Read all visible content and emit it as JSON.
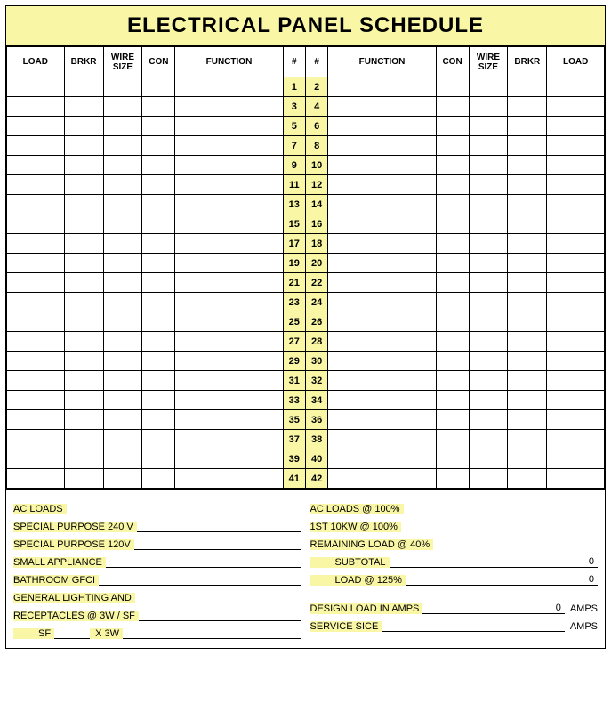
{
  "title": "ELECTRICAL PANEL SCHEDULE",
  "colors": {
    "highlight": "#f9f7a6",
    "border": "#000000",
    "background": "#ffffff"
  },
  "headers": {
    "load": "LOAD",
    "brkr": "BRKR",
    "wire": "WIRE SIZE",
    "con": "CON",
    "function": "FUNCTION",
    "num": "#"
  },
  "rows": [
    {
      "left": {
        "load": "",
        "brkr": "",
        "wire": "",
        "con": "",
        "func": ""
      },
      "lnum": "1",
      "rnum": "2",
      "right": {
        "func": "",
        "con": "",
        "wire": "",
        "brkr": "",
        "load": ""
      }
    },
    {
      "left": {
        "load": "",
        "brkr": "",
        "wire": "",
        "con": "",
        "func": ""
      },
      "lnum": "3",
      "rnum": "4",
      "right": {
        "func": "",
        "con": "",
        "wire": "",
        "brkr": "",
        "load": ""
      }
    },
    {
      "left": {
        "load": "",
        "brkr": "",
        "wire": "",
        "con": "",
        "func": ""
      },
      "lnum": "5",
      "rnum": "6",
      "right": {
        "func": "",
        "con": "",
        "wire": "",
        "brkr": "",
        "load": ""
      }
    },
    {
      "left": {
        "load": "",
        "brkr": "",
        "wire": "",
        "con": "",
        "func": ""
      },
      "lnum": "7",
      "rnum": "8",
      "right": {
        "func": "",
        "con": "",
        "wire": "",
        "brkr": "",
        "load": ""
      }
    },
    {
      "left": {
        "load": "",
        "brkr": "",
        "wire": "",
        "con": "",
        "func": ""
      },
      "lnum": "9",
      "rnum": "10",
      "right": {
        "func": "",
        "con": "",
        "wire": "",
        "brkr": "",
        "load": ""
      }
    },
    {
      "left": {
        "load": "",
        "brkr": "",
        "wire": "",
        "con": "",
        "func": ""
      },
      "lnum": "11",
      "rnum": "12",
      "right": {
        "func": "",
        "con": "",
        "wire": "",
        "brkr": "",
        "load": ""
      }
    },
    {
      "left": {
        "load": "",
        "brkr": "",
        "wire": "",
        "con": "",
        "func": ""
      },
      "lnum": "13",
      "rnum": "14",
      "right": {
        "func": "",
        "con": "",
        "wire": "",
        "brkr": "",
        "load": ""
      }
    },
    {
      "left": {
        "load": "",
        "brkr": "",
        "wire": "",
        "con": "",
        "func": ""
      },
      "lnum": "15",
      "rnum": "16",
      "right": {
        "func": "",
        "con": "",
        "wire": "",
        "brkr": "",
        "load": ""
      }
    },
    {
      "left": {
        "load": "",
        "brkr": "",
        "wire": "",
        "con": "",
        "func": ""
      },
      "lnum": "17",
      "rnum": "18",
      "right": {
        "func": "",
        "con": "",
        "wire": "",
        "brkr": "",
        "load": ""
      }
    },
    {
      "left": {
        "load": "",
        "brkr": "",
        "wire": "",
        "con": "",
        "func": ""
      },
      "lnum": "19",
      "rnum": "20",
      "right": {
        "func": "",
        "con": "",
        "wire": "",
        "brkr": "",
        "load": ""
      }
    },
    {
      "left": {
        "load": "",
        "brkr": "",
        "wire": "",
        "con": "",
        "func": ""
      },
      "lnum": "21",
      "rnum": "22",
      "right": {
        "func": "",
        "con": "",
        "wire": "",
        "brkr": "",
        "load": ""
      }
    },
    {
      "left": {
        "load": "",
        "brkr": "",
        "wire": "",
        "con": "",
        "func": ""
      },
      "lnum": "23",
      "rnum": "24",
      "right": {
        "func": "",
        "con": "",
        "wire": "",
        "brkr": "",
        "load": ""
      }
    },
    {
      "left": {
        "load": "",
        "brkr": "",
        "wire": "",
        "con": "",
        "func": ""
      },
      "lnum": "25",
      "rnum": "26",
      "right": {
        "func": "",
        "con": "",
        "wire": "",
        "brkr": "",
        "load": ""
      }
    },
    {
      "left": {
        "load": "",
        "brkr": "",
        "wire": "",
        "con": "",
        "func": ""
      },
      "lnum": "27",
      "rnum": "28",
      "right": {
        "func": "",
        "con": "",
        "wire": "",
        "brkr": "",
        "load": ""
      }
    },
    {
      "left": {
        "load": "",
        "brkr": "",
        "wire": "",
        "con": "",
        "func": ""
      },
      "lnum": "29",
      "rnum": "30",
      "right": {
        "func": "",
        "con": "",
        "wire": "",
        "brkr": "",
        "load": ""
      }
    },
    {
      "left": {
        "load": "",
        "brkr": "",
        "wire": "",
        "con": "",
        "func": ""
      },
      "lnum": "31",
      "rnum": "32",
      "right": {
        "func": "",
        "con": "",
        "wire": "",
        "brkr": "",
        "load": ""
      }
    },
    {
      "left": {
        "load": "",
        "brkr": "",
        "wire": "",
        "con": "",
        "func": ""
      },
      "lnum": "33",
      "rnum": "34",
      "right": {
        "func": "",
        "con": "",
        "wire": "",
        "brkr": "",
        "load": ""
      }
    },
    {
      "left": {
        "load": "",
        "brkr": "",
        "wire": "",
        "con": "",
        "func": ""
      },
      "lnum": "35",
      "rnum": "36",
      "right": {
        "func": "",
        "con": "",
        "wire": "",
        "brkr": "",
        "load": ""
      }
    },
    {
      "left": {
        "load": "",
        "brkr": "",
        "wire": "",
        "con": "",
        "func": ""
      },
      "lnum": "37",
      "rnum": "38",
      "right": {
        "func": "",
        "con": "",
        "wire": "",
        "brkr": "",
        "load": ""
      }
    },
    {
      "left": {
        "load": "",
        "brkr": "",
        "wire": "",
        "con": "",
        "func": ""
      },
      "lnum": "39",
      "rnum": "40",
      "right": {
        "func": "",
        "con": "",
        "wire": "",
        "brkr": "",
        "load": ""
      }
    },
    {
      "left": {
        "load": "",
        "brkr": "",
        "wire": "",
        "con": "",
        "func": ""
      },
      "lnum": "41",
      "rnum": "42",
      "right": {
        "func": "",
        "con": "",
        "wire": "",
        "brkr": "",
        "load": ""
      }
    }
  ],
  "footer_left": {
    "r0": "AC LOADS",
    "r1": "SPECIAL PURPOSE 240 V",
    "r2": "SPECIAL PURPOSE 120V",
    "r3": "SMALL APPLIANCE",
    "r4": "BATHROOM GFCI",
    "r5": "GENERAL LIGHTING AND",
    "r6": "RECEPTACLES @ 3W / SF",
    "r7a": "SF",
    "r7b": "X 3W"
  },
  "footer_right": {
    "r0": "AC LOADS @ 100%",
    "r1": "1ST 10KW @ 100%",
    "r2": "REMAINING LOAD @ 40%",
    "r3": "SUBTOTAL",
    "r3v": "0",
    "r4": "LOAD @ 125%",
    "r4v": "0",
    "r5": "DESIGN LOAD IN AMPS",
    "r5v": "0",
    "r5u": "AMPS",
    "r6": "SERVICE SICE",
    "r6u": "AMPS"
  }
}
